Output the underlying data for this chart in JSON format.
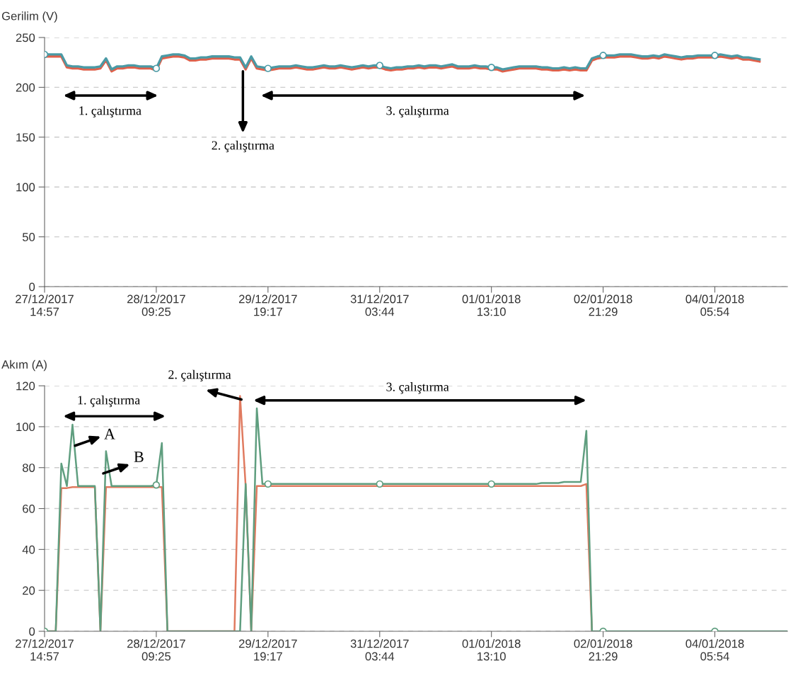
{
  "chart_data": [
    {
      "type": "line",
      "ylabel": "Gerilim (V)",
      "ylim": [
        0,
        250
      ],
      "yticks": [
        0,
        50,
        100,
        150,
        200,
        250
      ],
      "categories": [
        "27/12/2017\n14:57",
        null,
        null,
        null,
        null,
        null,
        null,
        null,
        null,
        null,
        null,
        null,
        null,
        null,
        null,
        null,
        null,
        null,
        null,
        null,
        "28/12/2017\n09:25",
        null,
        null,
        null,
        null,
        null,
        null,
        null,
        null,
        null,
        null,
        null,
        null,
        null,
        null,
        null,
        null,
        null,
        null,
        null,
        "29/12/2017\n19:17",
        null,
        null,
        null,
        null,
        null,
        null,
        null,
        null,
        null,
        null,
        null,
        null,
        null,
        null,
        null,
        null,
        null,
        null,
        null,
        "31/12/2017\n03:44",
        null,
        null,
        null,
        null,
        null,
        null,
        null,
        null,
        null,
        null,
        null,
        null,
        null,
        null,
        null,
        null,
        null,
        null,
        null,
        "01/01/2018\n13:10",
        null,
        null,
        null,
        null,
        null,
        null,
        null,
        null,
        null,
        null,
        null,
        null,
        null,
        null,
        null,
        null,
        null,
        null,
        null,
        "02/01/2018\n21:29",
        null,
        null,
        null,
        null,
        null,
        null,
        null,
        null,
        null,
        null,
        null,
        null,
        null,
        null,
        null,
        null,
        null,
        null,
        null,
        "04/01/2018\n05:54",
        null,
        null,
        null,
        null,
        null,
        null,
        null,
        null,
        null,
        null,
        null,
        null,
        null
      ],
      "grid": "y",
      "series": [
        {
          "color": "#e0604a",
          "values": [
            231,
            231,
            231,
            231,
            220,
            219,
            219,
            218,
            218,
            218,
            219,
            227,
            216,
            219,
            219,
            220,
            220,
            219,
            219,
            219,
            217,
            229,
            230,
            231,
            231,
            230,
            227,
            227,
            228,
            228,
            229,
            229,
            229,
            229,
            228,
            228,
            218,
            229,
            219,
            218,
            217,
            218,
            219,
            219,
            219,
            220,
            219,
            218,
            218,
            219,
            220,
            219,
            219,
            220,
            219,
            218,
            219,
            220,
            219,
            220,
            220,
            218,
            217,
            218,
            218,
            219,
            219,
            220,
            219,
            220,
            220,
            219,
            220,
            221,
            219,
            219,
            219,
            220,
            219,
            219,
            218,
            218,
            216,
            217,
            218,
            219,
            219,
            219,
            219,
            218,
            218,
            217,
            217,
            218,
            217,
            218,
            217,
            217,
            227,
            229,
            230,
            230,
            230,
            231,
            231,
            231,
            230,
            229,
            229,
            230,
            229,
            231,
            230,
            229,
            228,
            229,
            229,
            230,
            230,
            230,
            230,
            231,
            230,
            229,
            230,
            228,
            228,
            227,
            226,
            null,
            null,
            null,
            null,
            null
          ]
        },
        {
          "color": "#4a9aa5",
          "values": [
            233,
            233,
            233,
            233,
            222,
            221,
            221,
            220,
            220,
            220,
            221,
            229,
            218,
            221,
            221,
            222,
            222,
            221,
            221,
            221,
            219,
            231,
            232,
            233,
            233,
            232,
            229,
            229,
            230,
            230,
            231,
            231,
            231,
            231,
            230,
            230,
            220,
            231,
            221,
            220,
            219,
            220,
            221,
            221,
            221,
            222,
            221,
            220,
            220,
            221,
            222,
            221,
            221,
            222,
            221,
            220,
            221,
            222,
            221,
            222,
            222,
            220,
            219,
            220,
            220,
            221,
            221,
            222,
            221,
            222,
            222,
            221,
            222,
            223,
            221,
            221,
            221,
            222,
            221,
            221,
            220,
            220,
            218,
            219,
            220,
            221,
            221,
            221,
            221,
            220,
            220,
            219,
            219,
            220,
            219,
            220,
            219,
            219,
            229,
            231,
            232,
            232,
            232,
            233,
            233,
            233,
            232,
            231,
            231,
            232,
            231,
            233,
            232,
            231,
            230,
            231,
            231,
            232,
            232,
            232,
            232,
            233,
            232,
            231,
            232,
            230,
            230,
            229,
            228,
            null,
            null,
            null,
            null,
            null
          ]
        },
        {
          "type": "scatter",
          "marker": "circle",
          "color": "#4a9aa5",
          "values": [
            233,
            null,
            null,
            null,
            null,
            null,
            null,
            null,
            null,
            null,
            null,
            null,
            null,
            null,
            null,
            null,
            null,
            null,
            null,
            null,
            219,
            null,
            null,
            null,
            null,
            null,
            null,
            null,
            null,
            null,
            null,
            null,
            null,
            null,
            null,
            null,
            null,
            null,
            null,
            null,
            219,
            null,
            null,
            null,
            null,
            null,
            null,
            null,
            null,
            null,
            null,
            null,
            null,
            null,
            null,
            null,
            null,
            null,
            null,
            null,
            222,
            null,
            null,
            null,
            null,
            null,
            null,
            null,
            null,
            null,
            null,
            null,
            null,
            null,
            null,
            null,
            null,
            null,
            null,
            null,
            220,
            null,
            null,
            null,
            null,
            null,
            null,
            null,
            null,
            null,
            null,
            null,
            null,
            null,
            null,
            null,
            null,
            null,
            null,
            null,
            232,
            null,
            null,
            null,
            null,
            null,
            null,
            null,
            null,
            null,
            null,
            null,
            null,
            null,
            null,
            null,
            null,
            null,
            null,
            null,
            232,
            null,
            null,
            null,
            null,
            null,
            null,
            null,
            null,
            null,
            null,
            null,
            null,
            null
          ]
        }
      ],
      "annotations": [
        "1. çalıştırma",
        "2. çalıştırma",
        "3. çalıştırma"
      ]
    },
    {
      "type": "line",
      "ylabel": "Akım (A)",
      "ylim": [
        0,
        120
      ],
      "yticks": [
        0,
        20,
        40,
        60,
        80,
        100,
        120
      ],
      "categories": [
        "27/12/2017\n14:57",
        null,
        null,
        null,
        null,
        null,
        null,
        null,
        null,
        null,
        null,
        null,
        null,
        null,
        null,
        null,
        null,
        null,
        null,
        null,
        "28/12/2017\n09:25",
        null,
        null,
        null,
        null,
        null,
        null,
        null,
        null,
        null,
        null,
        null,
        null,
        null,
        null,
        null,
        null,
        null,
        null,
        null,
        "29/12/2017\n19:17",
        null,
        null,
        null,
        null,
        null,
        null,
        null,
        null,
        null,
        null,
        null,
        null,
        null,
        null,
        null,
        null,
        null,
        null,
        null,
        "31/12/2017\n03:44",
        null,
        null,
        null,
        null,
        null,
        null,
        null,
        null,
        null,
        null,
        null,
        null,
        null,
        null,
        null,
        null,
        null,
        null,
        null,
        "01/01/2018\n13:10",
        null,
        null,
        null,
        null,
        null,
        null,
        null,
        null,
        null,
        null,
        null,
        null,
        null,
        null,
        null,
        null,
        null,
        null,
        null,
        "02/01/2018\n21:29",
        null,
        null,
        null,
        null,
        null,
        null,
        null,
        null,
        null,
        null,
        null,
        null,
        null,
        null,
        null,
        null,
        null,
        null,
        null,
        "04/01/2018\n05:54",
        null,
        null,
        null,
        null,
        null,
        null,
        null,
        null,
        null,
        null,
        null,
        null,
        null
      ],
      "grid": "y",
      "series": [
        {
          "color": "#e07a5f",
          "values": [
            0,
            0,
            0,
            70,
            70,
            70.5,
            70.5,
            70.5,
            70.5,
            70.5,
            0,
            70.5,
            70.5,
            70.5,
            70.5,
            70.5,
            70.5,
            70.5,
            70.5,
            70.5,
            70.5,
            70.5,
            0,
            0,
            0,
            0,
            0,
            0,
            0,
            0,
            0,
            0,
            0,
            0,
            0,
            115,
            71,
            0,
            71,
            71,
            71,
            71,
            71,
            71,
            71,
            71,
            71,
            71,
            71,
            71,
            71,
            71,
            71,
            71,
            71,
            71,
            71,
            71,
            71,
            71,
            71,
            71,
            71,
            71,
            71,
            71,
            71,
            71,
            71,
            71,
            71,
            71,
            71,
            71,
            71,
            71,
            71,
            71,
            71,
            71,
            71,
            71,
            71,
            71,
            71,
            71,
            71,
            71,
            71,
            71,
            71,
            71,
            71,
            71,
            71,
            71,
            71,
            72,
            0,
            null,
            null,
            null,
            null,
            null,
            null,
            null,
            null,
            null,
            null,
            null,
            null,
            null,
            null,
            null,
            null,
            null,
            null,
            null,
            null,
            null,
            null,
            null,
            null,
            null,
            null,
            null,
            null,
            null,
            null,
            null,
            null,
            null,
            null,
            null
          ]
        },
        {
          "color": "#5f9e7f",
          "values": [
            0,
            0,
            0,
            82,
            71,
            101,
            71,
            71,
            71,
            71,
            0,
            88,
            71,
            71,
            71,
            71,
            71,
            71,
            71,
            71,
            71.5,
            92,
            0,
            0,
            0,
            0,
            0,
            0,
            0,
            0,
            0,
            0,
            0,
            0,
            0,
            0,
            72,
            0,
            109,
            72,
            72,
            72,
            72,
            72,
            72,
            72,
            72,
            72,
            72,
            72,
            72,
            72,
            72,
            72,
            72,
            72,
            72,
            72,
            72,
            72,
            72,
            72,
            72,
            72,
            72,
            72,
            72,
            72,
            72,
            72,
            72,
            72,
            72,
            72,
            72,
            72,
            72,
            72,
            72,
            72,
            72,
            72,
            72,
            72,
            72,
            72,
            72,
            72,
            72,
            72.5,
            72.5,
            72.5,
            72.5,
            73,
            73,
            73,
            73,
            98,
            0,
            0,
            0,
            0,
            0,
            0,
            0,
            0,
            0,
            0,
            0,
            0,
            0,
            0,
            0,
            0,
            0,
            0,
            0,
            0,
            0,
            0,
            0,
            0,
            0,
            0,
            0,
            0,
            0,
            0,
            0,
            0,
            0,
            0,
            0,
            0
          ]
        },
        {
          "type": "scatter",
          "marker": "circle",
          "color": "#5f9e7f",
          "values": [
            0,
            null,
            null,
            null,
            null,
            null,
            null,
            null,
            null,
            null,
            null,
            null,
            null,
            null,
            null,
            null,
            null,
            null,
            null,
            null,
            71.5,
            null,
            null,
            null,
            null,
            null,
            null,
            null,
            null,
            null,
            null,
            null,
            null,
            null,
            null,
            null,
            null,
            null,
            null,
            null,
            72,
            null,
            null,
            null,
            null,
            null,
            null,
            null,
            null,
            null,
            null,
            null,
            null,
            null,
            null,
            null,
            null,
            null,
            null,
            null,
            72,
            null,
            null,
            null,
            null,
            null,
            null,
            null,
            null,
            null,
            null,
            null,
            null,
            null,
            null,
            null,
            null,
            null,
            null,
            null,
            72,
            null,
            null,
            null,
            null,
            null,
            null,
            null,
            null,
            null,
            null,
            null,
            null,
            null,
            null,
            null,
            null,
            null,
            null,
            null,
            0,
            null,
            null,
            null,
            null,
            null,
            null,
            null,
            null,
            null,
            null,
            null,
            null,
            null,
            null,
            null,
            null,
            null,
            null,
            null,
            0,
            null,
            null,
            null,
            null,
            null,
            null,
            null,
            null,
            null,
            null,
            null,
            null,
            null
          ]
        }
      ],
      "annotations": [
        "1. çalıştırma",
        "A",
        "B",
        "2. çalıştırma",
        "3. çalıştırma"
      ]
    }
  ]
}
